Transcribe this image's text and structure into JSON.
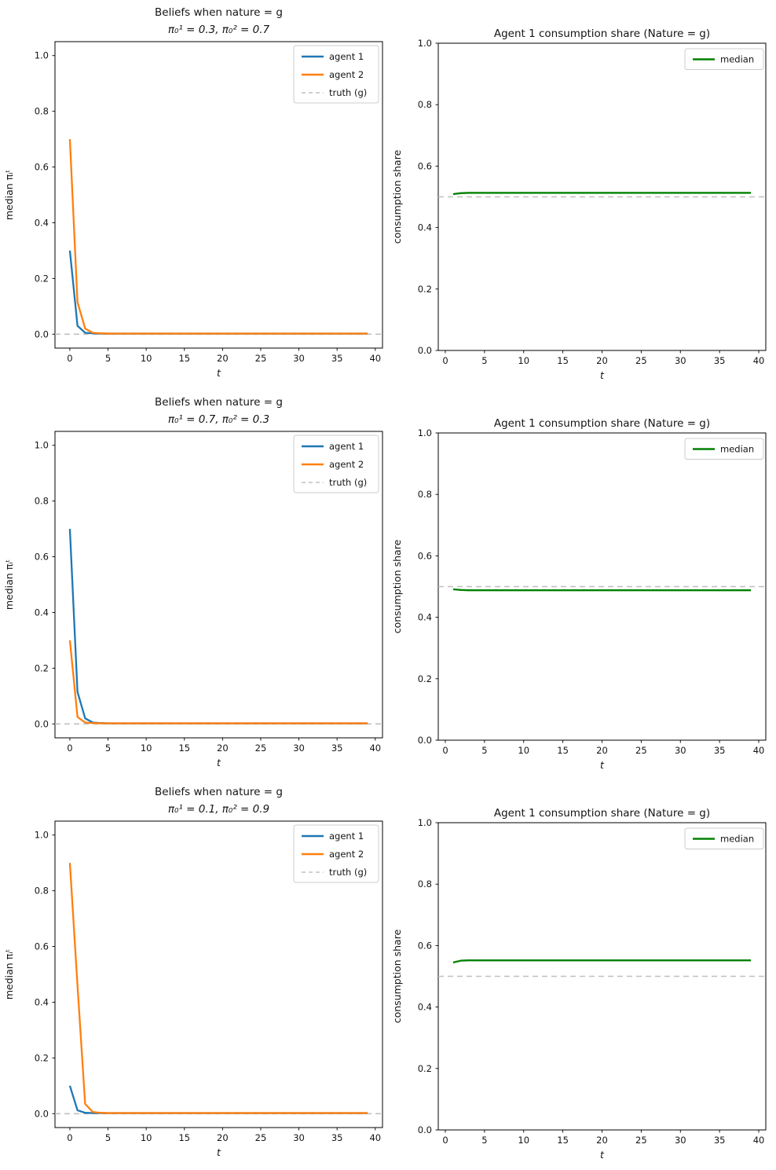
{
  "figure": {
    "background": "#ffffff",
    "columns": 2,
    "rows": 3
  },
  "chart_data": [
    {
      "id": "beliefs-row1",
      "type": "line",
      "title": "Beliefs when nature = g",
      "subtitle": "π₀¹ = 0.3, π₀² = 0.7",
      "xlabel": "t",
      "ylabel": "median πᵢᵗ",
      "xlim": [
        -1.95,
        40.95
      ],
      "ylim": [
        -0.05,
        1.05
      ],
      "xticks": [
        0,
        5,
        10,
        15,
        20,
        25,
        30,
        35,
        40
      ],
      "yticks": [
        0.0,
        0.2,
        0.4,
        0.6,
        0.8,
        1.0
      ],
      "grid": false,
      "legend_position": "upper right",
      "series": [
        {
          "name": "agent 1",
          "color": "#1f77b4",
          "style": "solid",
          "x_start": 0,
          "values": [
            0.3,
            0.03,
            0.005,
            0.003,
            0.002,
            0.002,
            0.002,
            0.002,
            0.002,
            0.002,
            0.002,
            0.002,
            0.002,
            0.002,
            0.002,
            0.002,
            0.002,
            0.002,
            0.002,
            0.002,
            0.002,
            0.002,
            0.002,
            0.002,
            0.002,
            0.002,
            0.002,
            0.002,
            0.002,
            0.002,
            0.002,
            0.002,
            0.002,
            0.002,
            0.002,
            0.002,
            0.002,
            0.002,
            0.002,
            0.002
          ]
        },
        {
          "name": "agent 2",
          "color": "#ff7f0e",
          "style": "solid",
          "x_start": 0,
          "values": [
            0.7,
            0.115,
            0.02,
            0.005,
            0.003,
            0.002,
            0.002,
            0.002,
            0.002,
            0.002,
            0.002,
            0.002,
            0.002,
            0.002,
            0.002,
            0.002,
            0.002,
            0.002,
            0.002,
            0.002,
            0.002,
            0.002,
            0.002,
            0.002,
            0.002,
            0.002,
            0.002,
            0.002,
            0.002,
            0.002,
            0.002,
            0.002,
            0.002,
            0.002,
            0.002,
            0.002,
            0.002,
            0.002,
            0.002,
            0.002
          ]
        },
        {
          "name": "truth (g)",
          "color": "#c0c0c0",
          "style": "dashed",
          "hline": 0.0
        }
      ]
    },
    {
      "id": "consumption-row1",
      "type": "line",
      "title": "Agent 1 consumption share (Nature = g)",
      "subtitle": null,
      "xlabel": "t",
      "ylabel": "consumption share",
      "xlim": [
        -0.9,
        40.9
      ],
      "ylim": [
        0.0,
        1.0
      ],
      "xticks": [
        0,
        5,
        10,
        15,
        20,
        25,
        30,
        35,
        40
      ],
      "yticks": [
        0.0,
        0.2,
        0.4,
        0.6,
        0.8,
        1.0
      ],
      "grid": false,
      "legend_position": "upper right",
      "series": [
        {
          "name": "truth (g)",
          "color": "#c0c0c0",
          "style": "dashed",
          "hline": 0.5,
          "in_legend": false
        },
        {
          "name": "median",
          "color": "#008000",
          "style": "solid",
          "x_start": 1,
          "values": [
            0.509,
            0.512,
            0.513,
            0.513,
            0.513,
            0.513,
            0.513,
            0.513,
            0.513,
            0.513,
            0.513,
            0.513,
            0.513,
            0.513,
            0.513,
            0.513,
            0.513,
            0.513,
            0.513,
            0.513,
            0.513,
            0.513,
            0.513,
            0.513,
            0.513,
            0.513,
            0.513,
            0.513,
            0.513,
            0.513,
            0.513,
            0.513,
            0.513,
            0.513,
            0.513,
            0.513,
            0.513,
            0.513,
            0.513
          ]
        }
      ]
    },
    {
      "id": "beliefs-row2",
      "type": "line",
      "title": "Beliefs when nature = g",
      "subtitle": "π₀¹ = 0.7, π₀² = 0.3",
      "xlabel": "t",
      "ylabel": "median πᵢᵗ",
      "xlim": [
        -1.95,
        40.95
      ],
      "ylim": [
        -0.05,
        1.05
      ],
      "xticks": [
        0,
        5,
        10,
        15,
        20,
        25,
        30,
        35,
        40
      ],
      "yticks": [
        0.0,
        0.2,
        0.4,
        0.6,
        0.8,
        1.0
      ],
      "grid": false,
      "legend_position": "upper right",
      "series": [
        {
          "name": "agent 1",
          "color": "#1f77b4",
          "style": "solid",
          "x_start": 0,
          "values": [
            0.7,
            0.115,
            0.02,
            0.005,
            0.003,
            0.002,
            0.002,
            0.002,
            0.002,
            0.002,
            0.002,
            0.002,
            0.002,
            0.002,
            0.002,
            0.002,
            0.002,
            0.002,
            0.002,
            0.002,
            0.002,
            0.002,
            0.002,
            0.002,
            0.002,
            0.002,
            0.002,
            0.002,
            0.002,
            0.002,
            0.002,
            0.002,
            0.002,
            0.002,
            0.002,
            0.002,
            0.002,
            0.002,
            0.002,
            0.002
          ]
        },
        {
          "name": "agent 2",
          "color": "#ff7f0e",
          "style": "solid",
          "x_start": 0,
          "values": [
            0.3,
            0.025,
            0.005,
            0.003,
            0.002,
            0.002,
            0.002,
            0.002,
            0.002,
            0.002,
            0.002,
            0.002,
            0.002,
            0.002,
            0.002,
            0.002,
            0.002,
            0.002,
            0.002,
            0.002,
            0.002,
            0.002,
            0.002,
            0.002,
            0.002,
            0.002,
            0.002,
            0.002,
            0.002,
            0.002,
            0.002,
            0.002,
            0.002,
            0.002,
            0.002,
            0.002,
            0.002,
            0.002,
            0.002,
            0.002
          ]
        },
        {
          "name": "truth (g)",
          "color": "#c0c0c0",
          "style": "dashed",
          "hline": 0.0
        }
      ]
    },
    {
      "id": "consumption-row2",
      "type": "line",
      "title": "Agent 1 consumption share (Nature = g)",
      "subtitle": null,
      "xlabel": "t",
      "ylabel": "consumption share",
      "xlim": [
        -0.9,
        40.9
      ],
      "ylim": [
        0.0,
        1.0
      ],
      "xticks": [
        0,
        5,
        10,
        15,
        20,
        25,
        30,
        35,
        40
      ],
      "yticks": [
        0.0,
        0.2,
        0.4,
        0.6,
        0.8,
        1.0
      ],
      "grid": false,
      "legend_position": "upper right",
      "series": [
        {
          "name": "truth (g)",
          "color": "#c0c0c0",
          "style": "dashed",
          "hline": 0.5,
          "in_legend": false
        },
        {
          "name": "median",
          "color": "#008000",
          "style": "solid",
          "x_start": 1,
          "values": [
            0.491,
            0.489,
            0.488,
            0.488,
            0.488,
            0.488,
            0.488,
            0.488,
            0.488,
            0.488,
            0.488,
            0.488,
            0.488,
            0.488,
            0.488,
            0.488,
            0.488,
            0.488,
            0.488,
            0.488,
            0.488,
            0.488,
            0.488,
            0.488,
            0.488,
            0.488,
            0.488,
            0.488,
            0.488,
            0.488,
            0.488,
            0.488,
            0.488,
            0.488,
            0.488,
            0.488,
            0.488,
            0.488,
            0.488
          ]
        }
      ]
    },
    {
      "id": "beliefs-row3",
      "type": "line",
      "title": "Beliefs when nature = g",
      "subtitle": "π₀¹ = 0.1, π₀² = 0.9",
      "xlabel": "t",
      "ylabel": "median πᵢᵗ",
      "xlim": [
        -1.95,
        40.95
      ],
      "ylim": [
        -0.05,
        1.05
      ],
      "xticks": [
        0,
        5,
        10,
        15,
        20,
        25,
        30,
        35,
        40
      ],
      "yticks": [
        0.0,
        0.2,
        0.4,
        0.6,
        0.8,
        1.0
      ],
      "grid": false,
      "legend_position": "upper right",
      "series": [
        {
          "name": "agent 1",
          "color": "#1f77b4",
          "style": "solid",
          "x_start": 0,
          "values": [
            0.1,
            0.012,
            0.003,
            0.002,
            0.002,
            0.002,
            0.002,
            0.002,
            0.002,
            0.002,
            0.002,
            0.002,
            0.002,
            0.002,
            0.002,
            0.002,
            0.002,
            0.002,
            0.002,
            0.002,
            0.002,
            0.002,
            0.002,
            0.002,
            0.002,
            0.002,
            0.002,
            0.002,
            0.002,
            0.002,
            0.002,
            0.002,
            0.002,
            0.002,
            0.002,
            0.002,
            0.002,
            0.002,
            0.002,
            0.002
          ]
        },
        {
          "name": "agent 2",
          "color": "#ff7f0e",
          "style": "solid",
          "x_start": 0,
          "values": [
            0.9,
            0.46,
            0.035,
            0.006,
            0.003,
            0.002,
            0.002,
            0.002,
            0.002,
            0.002,
            0.002,
            0.002,
            0.002,
            0.002,
            0.002,
            0.002,
            0.002,
            0.002,
            0.002,
            0.002,
            0.002,
            0.002,
            0.002,
            0.002,
            0.002,
            0.002,
            0.002,
            0.002,
            0.002,
            0.002,
            0.002,
            0.002,
            0.002,
            0.002,
            0.002,
            0.002,
            0.002,
            0.002,
            0.002,
            0.002
          ]
        },
        {
          "name": "truth (g)",
          "color": "#c0c0c0",
          "style": "dashed",
          "hline": 0.0
        }
      ]
    },
    {
      "id": "consumption-row3",
      "type": "line",
      "title": "Agent 1 consumption share (Nature = g)",
      "subtitle": null,
      "xlabel": "t",
      "ylabel": "consumption share",
      "xlim": [
        -0.9,
        40.9
      ],
      "ylim": [
        0.0,
        1.0
      ],
      "xticks": [
        0,
        5,
        10,
        15,
        20,
        25,
        30,
        35,
        40
      ],
      "yticks": [
        0.0,
        0.2,
        0.4,
        0.6,
        0.8,
        1.0
      ],
      "grid": false,
      "legend_position": "upper right",
      "series": [
        {
          "name": "truth (g)",
          "color": "#c0c0c0",
          "style": "dashed",
          "hline": 0.5,
          "in_legend": false
        },
        {
          "name": "median",
          "color": "#008000",
          "style": "solid",
          "x_start": 1,
          "values": [
            0.545,
            0.551,
            0.552,
            0.552,
            0.552,
            0.552,
            0.552,
            0.552,
            0.552,
            0.552,
            0.552,
            0.552,
            0.552,
            0.552,
            0.552,
            0.552,
            0.552,
            0.552,
            0.552,
            0.552,
            0.552,
            0.552,
            0.552,
            0.552,
            0.552,
            0.552,
            0.552,
            0.552,
            0.552,
            0.552,
            0.552,
            0.552,
            0.552,
            0.552,
            0.552,
            0.552,
            0.552,
            0.552,
            0.552
          ]
        }
      ]
    }
  ]
}
